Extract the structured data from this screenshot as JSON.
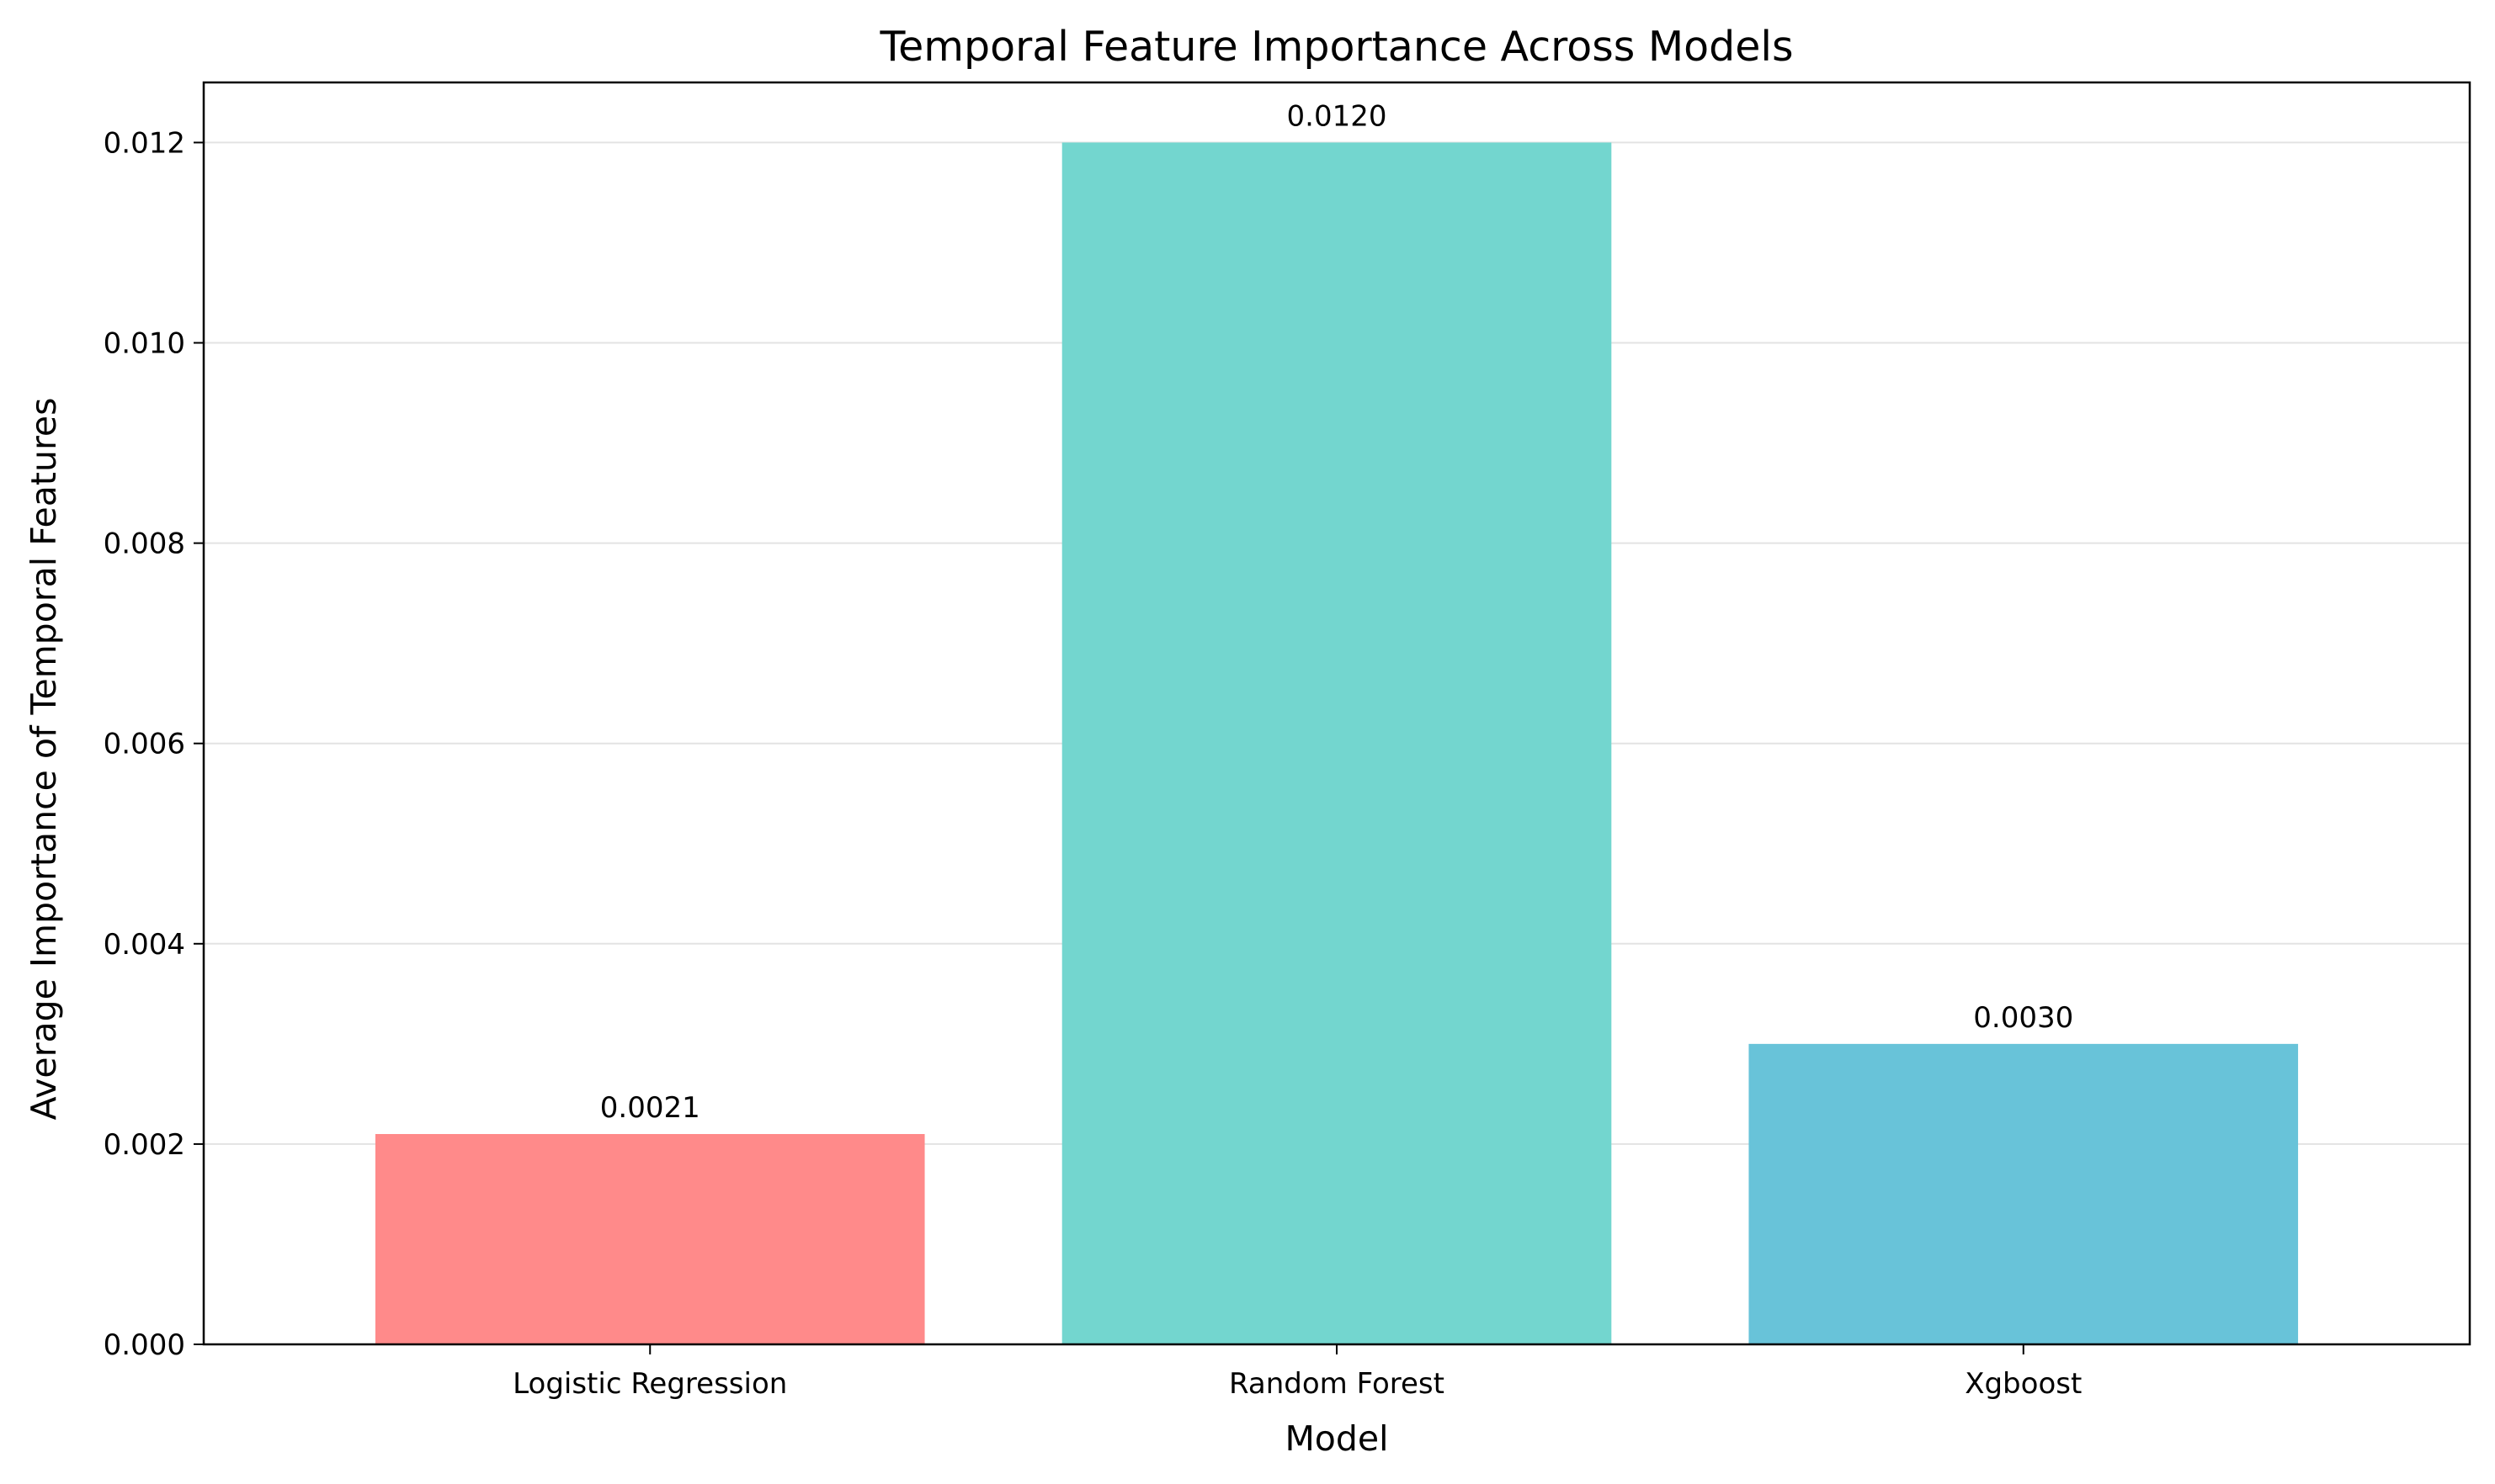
{
  "chart_data": {
    "type": "bar",
    "title": "Temporal Feature Importance Across Models",
    "xlabel": "Model",
    "ylabel": "Average Importance of Temporal Features",
    "categories": [
      "Logistic Regression",
      "Random Forest",
      "Xgboost"
    ],
    "values": [
      0.0021,
      0.012,
      0.003
    ],
    "value_labels": [
      "0.0021",
      "0.0120",
      "0.0030"
    ],
    "colors": [
      "#ff8a8a",
      "#73d6cf",
      "#68c3d9"
    ],
    "ylim": [
      0,
      0.0126
    ],
    "yticks": [
      0,
      0.002,
      0.004,
      0.006,
      0.008,
      0.01,
      0.012
    ],
    "ytick_labels": [
      "0.000",
      "0.002",
      "0.004",
      "0.006",
      "0.008",
      "0.010",
      "0.012"
    ],
    "grid": "y",
    "legend": "none"
  }
}
